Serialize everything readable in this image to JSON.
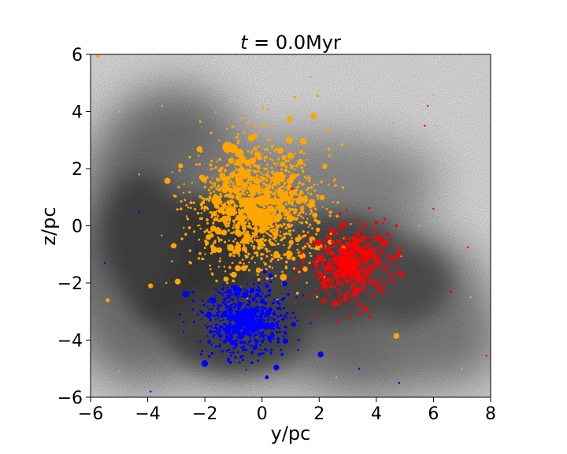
{
  "chart_data": {
    "type": "scatter",
    "title": "t = 0.0Myr",
    "title_parts": {
      "var": "t",
      "op": " = 0.0",
      "unit": "Myr"
    },
    "xlabel": "y/pc",
    "ylabel": "z/pc",
    "xlim": [
      -6,
      8
    ],
    "ylim": [
      -6,
      6
    ],
    "x_ticks": [
      -6,
      -4,
      -2,
      0,
      2,
      4,
      6,
      8
    ],
    "y_ticks": [
      -6,
      -4,
      -2,
      0,
      2,
      4,
      6
    ],
    "x_tick_labels": [
      "−6",
      "−4",
      "−2",
      "0",
      "2",
      "4",
      "6",
      "8"
    ],
    "y_tick_labels": [
      "−6",
      "−4",
      "−2",
      "0",
      "2",
      "4",
      "6"
    ],
    "grid": false,
    "background": "gas density map (grayscale)",
    "colors": {
      "orange": "#ffa500",
      "red": "#ff0000",
      "blue": "#0000ff"
    },
    "series": [
      {
        "color": "#ffa500",
        "cluster": {
          "center": [
            -0.2,
            0.6
          ],
          "spread": [
            1.1,
            1.05
          ],
          "count": 1400,
          "seed": 11
        },
        "points": [
          [
            -1.2,
            2.75,
            11
          ],
          [
            -1.0,
            2.7,
            9
          ],
          [
            -0.8,
            2.55,
            9
          ],
          [
            -0.5,
            2.2,
            7
          ],
          [
            -1.6,
            0.9,
            10
          ],
          [
            -0.6,
            1.8,
            9
          ],
          [
            -0.3,
            1.3,
            10
          ],
          [
            -0.1,
            0.3,
            18
          ],
          [
            -0.4,
            0.6,
            14
          ],
          [
            0.2,
            0.2,
            12
          ],
          [
            0.0,
            0.9,
            10
          ],
          [
            -1.1,
            0.5,
            9
          ],
          [
            1.45,
            2.95,
            7
          ],
          [
            1.0,
            2.45,
            7
          ],
          [
            -2.85,
            2.1,
            5
          ],
          [
            0.75,
            -1.8,
            7
          ],
          [
            -2.95,
            -1.95,
            6
          ],
          [
            -3.9,
            -2.1,
            5
          ],
          [
            -5.4,
            -2.6,
            4
          ],
          [
            4.7,
            -3.85,
            6
          ],
          [
            -5.75,
            5.95,
            4
          ],
          [
            1.95,
            4.55,
            3
          ],
          [
            -3.35,
            -2.0,
            2
          ],
          [
            2.35,
            3.35,
            3
          ],
          [
            1.15,
            4.5,
            3
          ],
          [
            -0.5,
            3.6,
            3
          ],
          [
            0.2,
            4.1,
            2
          ],
          [
            -4.3,
            1.8,
            2
          ],
          [
            3.8,
            3.5,
            2
          ],
          [
            6.1,
            3.5,
            2
          ],
          [
            7.3,
            -2.5,
            2
          ],
          [
            5.5,
            0.0,
            2
          ],
          [
            -3.5,
            4.2,
            2
          ],
          [
            -5.0,
            4.0,
            2
          ],
          [
            1.9,
            -0.8,
            3
          ],
          [
            -2.5,
            -1.3,
            3
          ],
          [
            -5.0,
            -5.1,
            2
          ],
          [
            6.0,
            4.6,
            2
          ],
          [
            -1.5,
            -5.8,
            2
          ],
          [
            4.6,
            3.6,
            2
          ],
          [
            1.7,
            5.2,
            2
          ],
          [
            -2.3,
            5.3,
            2
          ],
          [
            7.0,
            -5.0,
            2
          ],
          [
            2.6,
            -5.3,
            2
          ],
          [
            -0.3,
            -5.6,
            2
          ]
        ]
      },
      {
        "color": "#ff0000",
        "cluster": {
          "center": [
            3.0,
            -1.45
          ],
          "spread": [
            0.7,
            0.65
          ],
          "count": 550,
          "seed": 23
        },
        "points": [
          [
            2.95,
            -1.35,
            14
          ],
          [
            3.1,
            -1.5,
            11
          ],
          [
            2.8,
            -1.2,
            9
          ],
          [
            4.0,
            0.1,
            4
          ],
          [
            4.4,
            -0.3,
            4
          ],
          [
            4.7,
            0.0,
            3
          ],
          [
            6.6,
            -2.3,
            3
          ],
          [
            7.2,
            -0.75,
            2
          ],
          [
            7.85,
            -4.55,
            2
          ],
          [
            1.05,
            1.3,
            3
          ],
          [
            5.7,
            3.5,
            2
          ],
          [
            5.8,
            4.2,
            2
          ],
          [
            6.0,
            0.6,
            2
          ],
          [
            4.4,
            -2.3,
            2
          ],
          [
            2.2,
            -0.7,
            2
          ]
        ]
      },
      {
        "color": "#0000ff",
        "cluster": {
          "center": [
            -0.55,
            -3.35
          ],
          "spread": [
            0.75,
            0.6
          ],
          "count": 600,
          "seed": 37
        },
        "points": [
          [
            -0.5,
            -3.3,
            16
          ],
          [
            -0.75,
            -3.2,
            12
          ],
          [
            -0.3,
            -3.55,
            10
          ],
          [
            2.05,
            -4.5,
            6
          ],
          [
            1.1,
            -3.45,
            5
          ],
          [
            -1.8,
            -3.7,
            4
          ],
          [
            0.1,
            -1.6,
            4
          ],
          [
            -0.1,
            -4.5,
            3
          ],
          [
            1.2,
            -2.5,
            2
          ],
          [
            -4.3,
            0.5,
            2
          ],
          [
            -2.3,
            -0.9,
            2
          ],
          [
            -5.5,
            -1.3,
            2
          ],
          [
            4.8,
            -5.5,
            2
          ],
          [
            3.4,
            -5.0,
            2
          ],
          [
            -3.9,
            -5.8,
            2
          ]
        ]
      }
    ]
  }
}
